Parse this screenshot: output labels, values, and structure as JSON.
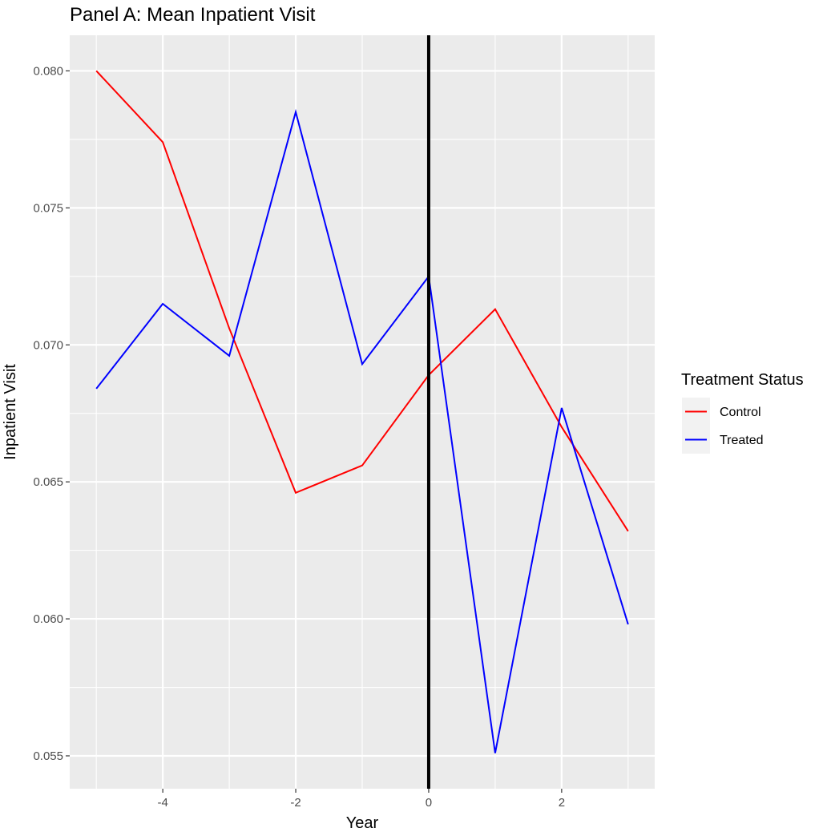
{
  "chart_data": {
    "type": "line",
    "title": "Panel A: Mean Inpatient Visit",
    "xlabel": "Year",
    "ylabel": "Inpatient Visit",
    "xlim": [
      -5.4,
      3.4
    ],
    "ylim": [
      0.0538,
      0.0813
    ],
    "x_ticks": [
      -4,
      -2,
      0,
      2
    ],
    "x_tick_labels": [
      "-4",
      "-2",
      "0",
      "2"
    ],
    "x_minor": [
      -5,
      -3,
      -1,
      1,
      3
    ],
    "y_ticks": [
      0.055,
      0.06,
      0.065,
      0.07,
      0.075,
      0.08
    ],
    "y_tick_labels": [
      "0.055",
      "0.060",
      "0.065",
      "0.070",
      "0.075",
      "0.080"
    ],
    "y_minor": [
      0.0575,
      0.0625,
      0.0675,
      0.0725,
      0.0775
    ],
    "vline": {
      "x": 0,
      "color": "#000000"
    },
    "grid": true,
    "panel_background": "#ebebeb",
    "x": [
      -5,
      -4,
      -3,
      -2,
      -1,
      0,
      1,
      2,
      3
    ],
    "series": [
      {
        "name": "Control",
        "color": "#ff0000",
        "values": [
          0.08,
          0.0774,
          0.0706,
          0.0646,
          0.0656,
          0.0689,
          0.0713,
          0.067,
          0.0632
        ]
      },
      {
        "name": "Treated",
        "color": "#0000ff",
        "values": [
          0.0684,
          0.0715,
          0.0696,
          0.0785,
          0.0693,
          0.0725,
          0.0551,
          0.0677,
          0.0598
        ]
      }
    ],
    "legend": {
      "title": "Treatment Status",
      "position": "right"
    }
  }
}
